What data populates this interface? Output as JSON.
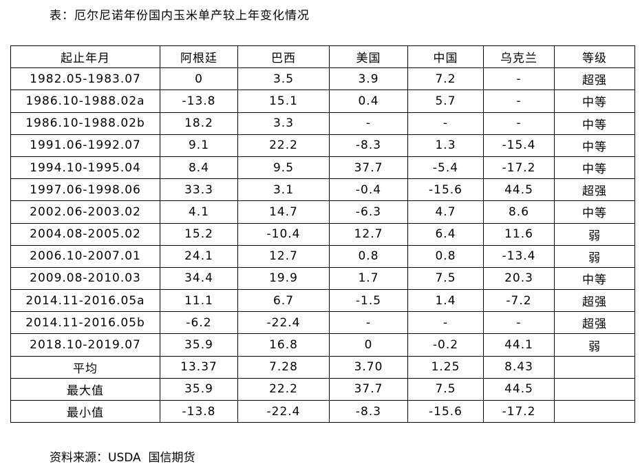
{
  "title": "表：厄尔尼诺年份国内玉米单产较上年变化情况",
  "table": {
    "header": [
      "起止年月",
      "阿根廷",
      "巴西",
      "美国",
      "中国",
      "乌克兰",
      "等级"
    ],
    "rows": [
      [
        "1982.05-1983.07",
        "0",
        "3.5",
        "3.9",
        "7.2",
        "-",
        "超强"
      ],
      [
        "1986.10-1988.02a",
        "-13.8",
        "15.1",
        "0.4",
        "5.7",
        "-",
        "中等"
      ],
      [
        "1986.10-1988.02b",
        "18.2",
        "3.3",
        "-",
        "-",
        "-",
        "中等"
      ],
      [
        "1991.06-1992.07",
        "9.1",
        "22.2",
        "-8.3",
        "1.3",
        "-15.4",
        "中等"
      ],
      [
        "1994.10-1995.04",
        "8.4",
        "9.5",
        "37.7",
        "-5.4",
        "-17.2",
        "中等"
      ],
      [
        "1997.06-1998.06",
        "33.3",
        "3.1",
        "-0.4",
        "-15.6",
        "44.5",
        "超强"
      ],
      [
        "2002.06-2003.02",
        "4.1",
        "14.7",
        "-6.3",
        "4.7",
        "8.6",
        "中等"
      ],
      [
        "2004.08-2005.02",
        "15.2",
        "-10.4",
        "12.7",
        "6.4",
        "11.6",
        "弱"
      ],
      [
        "2006.10-2007.01",
        "24.1",
        "12.7",
        "0.8",
        "0.8",
        "-13.4",
        "弱"
      ],
      [
        "2009.08-2010.03",
        "34.4",
        "19.9",
        "1.7",
        "7.5",
        "20.3",
        "中等"
      ],
      [
        "2014.11-2016.05a",
        "11.1",
        "6.7",
        "-1.5",
        "1.4",
        "-7.2",
        "超强"
      ],
      [
        "2014.11-2016.05b",
        "-6.2",
        "-22.4",
        "-",
        "-",
        "-",
        "超强"
      ],
      [
        "2018.10-2019.07",
        "35.9",
        "16.8",
        "0",
        "-0.2",
        "44.1",
        "弱"
      ],
      [
        "平均",
        "13.37",
        "7.28",
        "3.70",
        "1.25",
        "8.43"
      ],
      [
        "最大值",
        "35.9",
        "22.2",
        "37.7",
        "7.5",
        "44.5"
      ],
      [
        "最小值",
        "-13.8",
        "-22.4",
        "-8.3",
        "-15.6",
        "-17.2"
      ]
    ]
  },
  "source": "资料来源：USDA  国信期货"
}
